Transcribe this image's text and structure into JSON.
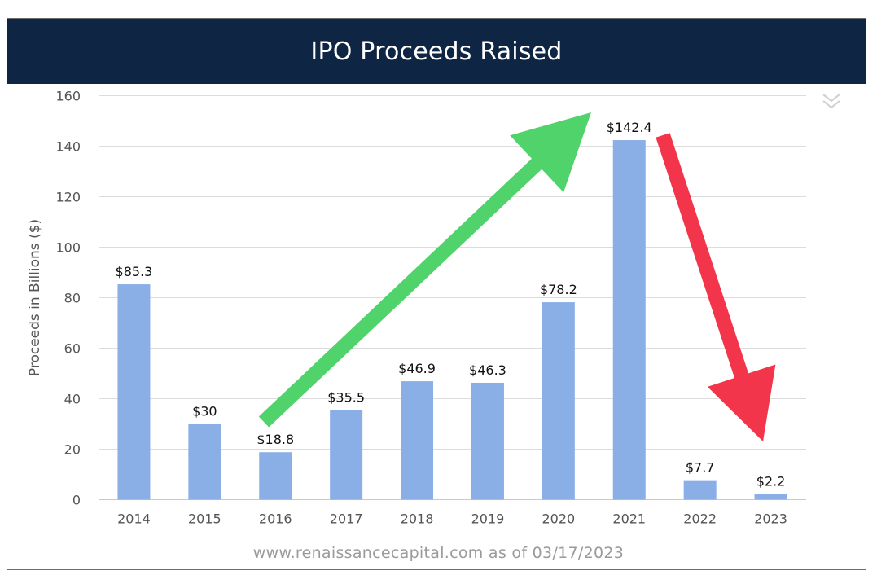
{
  "title": "IPO Proceeds Raised",
  "source_note": "www.renaissancecapital.com as of 03/17/2023",
  "menu_icon": "chevron-double-down-icon",
  "colors": {
    "header_bg": "#0f2544",
    "bar": "#8aaee6",
    "arrow_up": "#4fd36a",
    "arrow_down": "#f2354b",
    "grid": "#dcdcdc"
  },
  "chart_data": {
    "type": "bar",
    "title": "IPO Proceeds Raised",
    "xlabel": "",
    "ylabel": "Proceeds in Billions ($)",
    "ylim": [
      0,
      160
    ],
    "yticks": [
      0,
      20,
      40,
      60,
      80,
      100,
      120,
      140,
      160
    ],
    "grid": true,
    "categories": [
      "2014",
      "2015",
      "2016",
      "2017",
      "2018",
      "2019",
      "2020",
      "2021",
      "2022",
      "2023"
    ],
    "values": [
      85.3,
      30,
      18.8,
      35.5,
      46.9,
      46.3,
      78.2,
      142.4,
      7.7,
      2.2
    ],
    "data_labels": [
      "$85.3",
      "$30",
      "$18.8",
      "$35.5",
      "$46.9",
      "$46.3",
      "$78.2",
      "$142.4",
      "$7.7",
      "$2.2"
    ],
    "annotations": [
      {
        "type": "arrow",
        "color": "green",
        "from": "2016",
        "to": "2021"
      },
      {
        "type": "arrow",
        "color": "red",
        "from": "2021",
        "to": "2023"
      }
    ]
  }
}
